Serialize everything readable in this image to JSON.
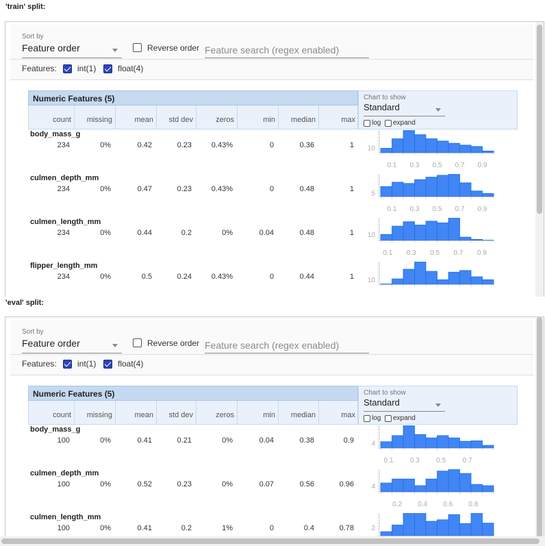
{
  "controls": {
    "sort_by_label": "Sort by",
    "sort_by_value": "Feature order",
    "reverse_order_label": "Reverse order",
    "reverse_order_checked": false,
    "search_placeholder": "Feature search (regex enabled)",
    "features_label": "Features:",
    "feature_types": [
      {
        "label": "int(1)",
        "checked": true
      },
      {
        "label": "float(4)",
        "checked": true
      }
    ],
    "table_title": "Numeric Features (5)",
    "columns": [
      "count",
      "missing",
      "mean",
      "std dev",
      "zeros",
      "min",
      "median",
      "max"
    ],
    "chart_to_show_label": "Chart to show",
    "chart_to_show_value": "Standard",
    "log_label": "log",
    "expand_label": "expand",
    "log_checked": false,
    "expand_checked": false
  },
  "colors": {
    "histogram_fill": "#4285f4",
    "histogram_stroke": "#1a73e8",
    "header_blue": "#c5d9f0",
    "checkbox_checked": "#2c45b8"
  },
  "splits": [
    {
      "label": "'train' split:",
      "features": [
        {
          "name": "body_mass_g",
          "values": [
            "234",
            "0%",
            "0.42",
            "0.23",
            "0.43%",
            "0",
            "0.36",
            "1"
          ],
          "histogram": {
            "x_domain": [
              0,
              1
            ],
            "x_ticks": [
              "0.1",
              "0.3",
              "0.5",
              "0.7",
              "0.9"
            ],
            "y_tick": 10,
            "counts": [
              10,
              31,
              50,
              40,
              31,
              26,
              21,
              17,
              14,
              4
            ]
          }
        },
        {
          "name": "culmen_depth_mm",
          "values": [
            "234",
            "0%",
            "0.47",
            "0.23",
            "0.43%",
            "0",
            "0.48",
            "1"
          ],
          "histogram": {
            "x_domain": [
              0,
              1
            ],
            "x_ticks": [
              "0.1",
              "0.3",
              "0.5",
              "0.7",
              "0.9"
            ],
            "y_tick": 5,
            "counts": [
              16,
              23,
              21,
              27,
              31,
              34,
              36,
              22,
              9,
              5
            ]
          }
        },
        {
          "name": "culmen_length_mm",
          "values": [
            "234",
            "0%",
            "0.44",
            "0.2",
            "0%",
            "0.04",
            "0.48",
            "1"
          ],
          "histogram": {
            "x_domain": [
              0.04,
              1
            ],
            "x_ticks": [
              "0.1",
              "0.3",
              "0.5",
              "0.7",
              "0.9"
            ],
            "y_tick": 10,
            "counts": [
              11,
              26,
              34,
              28,
              35,
              32,
              41,
              6,
              2,
              0.5
            ]
          }
        },
        {
          "name": "flipper_length_mm",
          "values": [
            "234",
            "0%",
            "0.5",
            "0.24",
            "0.43%",
            "0",
            "0.44",
            "1"
          ],
          "histogram": {
            "x_domain": [
              0,
              1
            ],
            "x_ticks": [],
            "y_tick": 10,
            "counts": [
              1,
              13,
              36,
              54,
              31,
              11,
              29,
              33,
              18,
              11
            ]
          }
        }
      ]
    },
    {
      "label": "'eval' split:",
      "features": [
        {
          "name": "body_mass_g",
          "values": [
            "100",
            "0%",
            "0.41",
            "0.21",
            "0%",
            "0.04",
            "0.38",
            "0.9"
          ],
          "histogram": {
            "x_domain": [
              0.04,
              0.9
            ],
            "x_ticks": [
              "0.1",
              "0.3",
              "0.5",
              "0.7"
            ],
            "y_tick": 4,
            "counts": [
              5.6,
              11,
              20,
              12,
              9,
              11,
              9,
              6,
              6.4,
              2.4
            ]
          }
        },
        {
          "name": "culmen_depth_mm",
          "values": [
            "100",
            "0%",
            "0.52",
            "0.23",
            "0%",
            "0.07",
            "0.56",
            "0.96"
          ],
          "histogram": {
            "x_domain": [
              0.07,
              0.96
            ],
            "x_ticks": [
              "0.2",
              "0.4",
              "0.6",
              "0.8"
            ],
            "y_tick": 4,
            "counts": [
              6.4,
              9.3,
              9.3,
              4.5,
              9.3,
              15,
              16.3,
              13.3,
              5.4,
              4.5
            ]
          }
        },
        {
          "name": "culmen_length_mm",
          "values": [
            "100",
            "0%",
            "0.41",
            "0.2",
            "1%",
            "0",
            "0.4",
            "0.78"
          ],
          "histogram": {
            "x_domain": [
              0,
              0.78
            ],
            "x_ticks": [],
            "y_tick": 2,
            "counts": [
              1.1,
              2.9,
              6.1,
              6.1,
              3.9,
              4.3,
              5.7,
              3.3,
              6.1,
              3.4
            ]
          }
        }
      ]
    }
  ]
}
